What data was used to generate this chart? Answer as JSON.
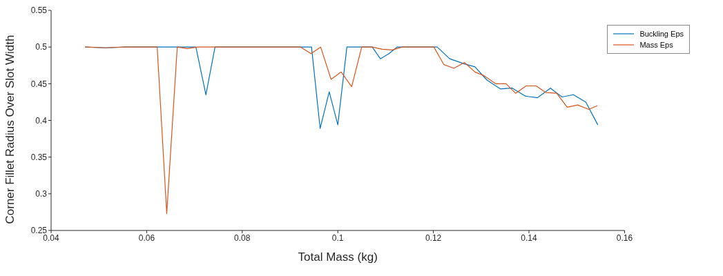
{
  "chart_data": {
    "type": "line",
    "xlabel": "Total Mass (kg)",
    "ylabel": "Corner Fillet Radius Over Slot Width",
    "xlim": [
      0.04,
      0.16
    ],
    "xticks": [
      0.04,
      0.06,
      0.08,
      0.1,
      0.12,
      0.14,
      0.16
    ],
    "ylim": [
      0.25,
      0.55
    ],
    "yticks": [
      0.25,
      0.3,
      0.35,
      0.4,
      0.45,
      0.5,
      0.55
    ],
    "grid": false,
    "legend": "top right",
    "marker": "none",
    "line_style": "solid",
    "series": [
      {
        "name": "Buckling Eps",
        "color": "#0072bd",
        "x": [
          0.0471,
          0.0515,
          0.0555,
          0.0703,
          0.0724,
          0.0743,
          0.0945,
          0.0963,
          0.0982,
          0.1,
          0.1019,
          0.1072,
          0.1089,
          0.1107,
          0.1124,
          0.1208,
          0.1234,
          0.1265,
          0.1287,
          0.1312,
          0.134,
          0.1365,
          0.1393,
          0.1418,
          0.1445,
          0.1469,
          0.1493,
          0.1519,
          0.1544
        ],
        "values": [
          0.5,
          0.499,
          0.5,
          0.5,
          0.435,
          0.5,
          0.5,
          0.389,
          0.439,
          0.394,
          0.5,
          0.5,
          0.484,
          0.491,
          0.5,
          0.5,
          0.484,
          0.477,
          0.473,
          0.455,
          0.443,
          0.444,
          0.433,
          0.431,
          0.444,
          0.432,
          0.435,
          0.425,
          0.394
        ]
      },
      {
        "name": "Mass Eps",
        "color": "#d95319",
        "x": [
          0.0471,
          0.0513,
          0.0555,
          0.0622,
          0.0642,
          0.0664,
          0.0685,
          0.0707,
          0.0922,
          0.0944,
          0.0964,
          0.0986,
          0.1007,
          0.1029,
          0.105,
          0.1072,
          0.1093,
          0.1114,
          0.1135,
          0.1201,
          0.1222,
          0.1243,
          0.1265,
          0.1287,
          0.1306,
          0.133,
          0.1352,
          0.1372,
          0.1394,
          0.1415,
          0.1435,
          0.1458,
          0.148,
          0.1502,
          0.1525,
          0.1543
        ],
        "values": [
          0.5,
          0.499,
          0.5,
          0.5,
          0.273,
          0.5,
          0.498,
          0.5,
          0.5,
          0.491,
          0.5,
          0.456,
          0.466,
          0.446,
          0.5,
          0.5,
          0.497,
          0.496,
          0.5,
          0.5,
          0.476,
          0.471,
          0.479,
          0.466,
          0.461,
          0.45,
          0.45,
          0.437,
          0.447,
          0.447,
          0.438,
          0.437,
          0.418,
          0.421,
          0.415,
          0.42
        ]
      }
    ]
  }
}
